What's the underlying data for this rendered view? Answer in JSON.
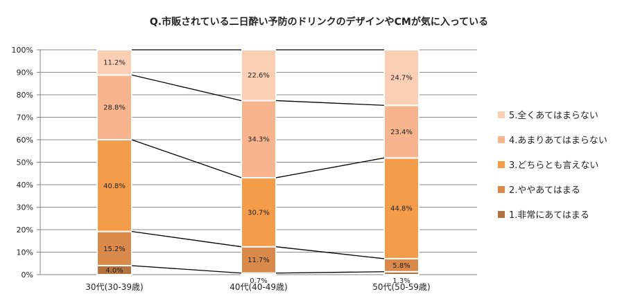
{
  "chart_data": {
    "type": "bar",
    "stacked": true,
    "percent": true,
    "title": "Q.市販されている二日酔い予防のドリンクのデザインやCMが気に入っている",
    "categories": [
      "30代(30-39歳)",
      "40代(40-49歳)",
      "50代(50-59歳)"
    ],
    "ylim": [
      0,
      100
    ],
    "yticks": [
      "0%",
      "10%",
      "20%",
      "30%",
      "40%",
      "50%",
      "60%",
      "70%",
      "80%",
      "90%",
      "100%"
    ],
    "grid": true,
    "legend_position": "right",
    "series": [
      {
        "name": "1.非常にあてはまる",
        "color": "#b5743f",
        "values": [
          4.0,
          0.7,
          1.3
        ],
        "labels": [
          "4.0%",
          "0.7%",
          "1.3%"
        ]
      },
      {
        "name": "2.ややあてはまる",
        "color": "#d9894a",
        "values": [
          15.2,
          11.7,
          5.8
        ],
        "labels": [
          "15.2%",
          "11.7%",
          "5.8%"
        ]
      },
      {
        "name": "3.どちらとも言えない",
        "color": "#f59c4b",
        "values": [
          40.8,
          30.7,
          44.8
        ],
        "labels": [
          "40.8%",
          "30.7%",
          "44.8%"
        ]
      },
      {
        "name": "4.あまりあてはまらない",
        "color": "#f8b48d",
        "values": [
          28.8,
          34.3,
          23.4
        ],
        "labels": [
          "28.8%",
          "34.3%",
          "23.4%"
        ]
      },
      {
        "name": "5.全くあてはまらない",
        "color": "#fbcfb4",
        "values": [
          11.2,
          22.6,
          24.7
        ],
        "labels": [
          "11.2%",
          "22.6%",
          "24.7%"
        ]
      }
    ]
  }
}
